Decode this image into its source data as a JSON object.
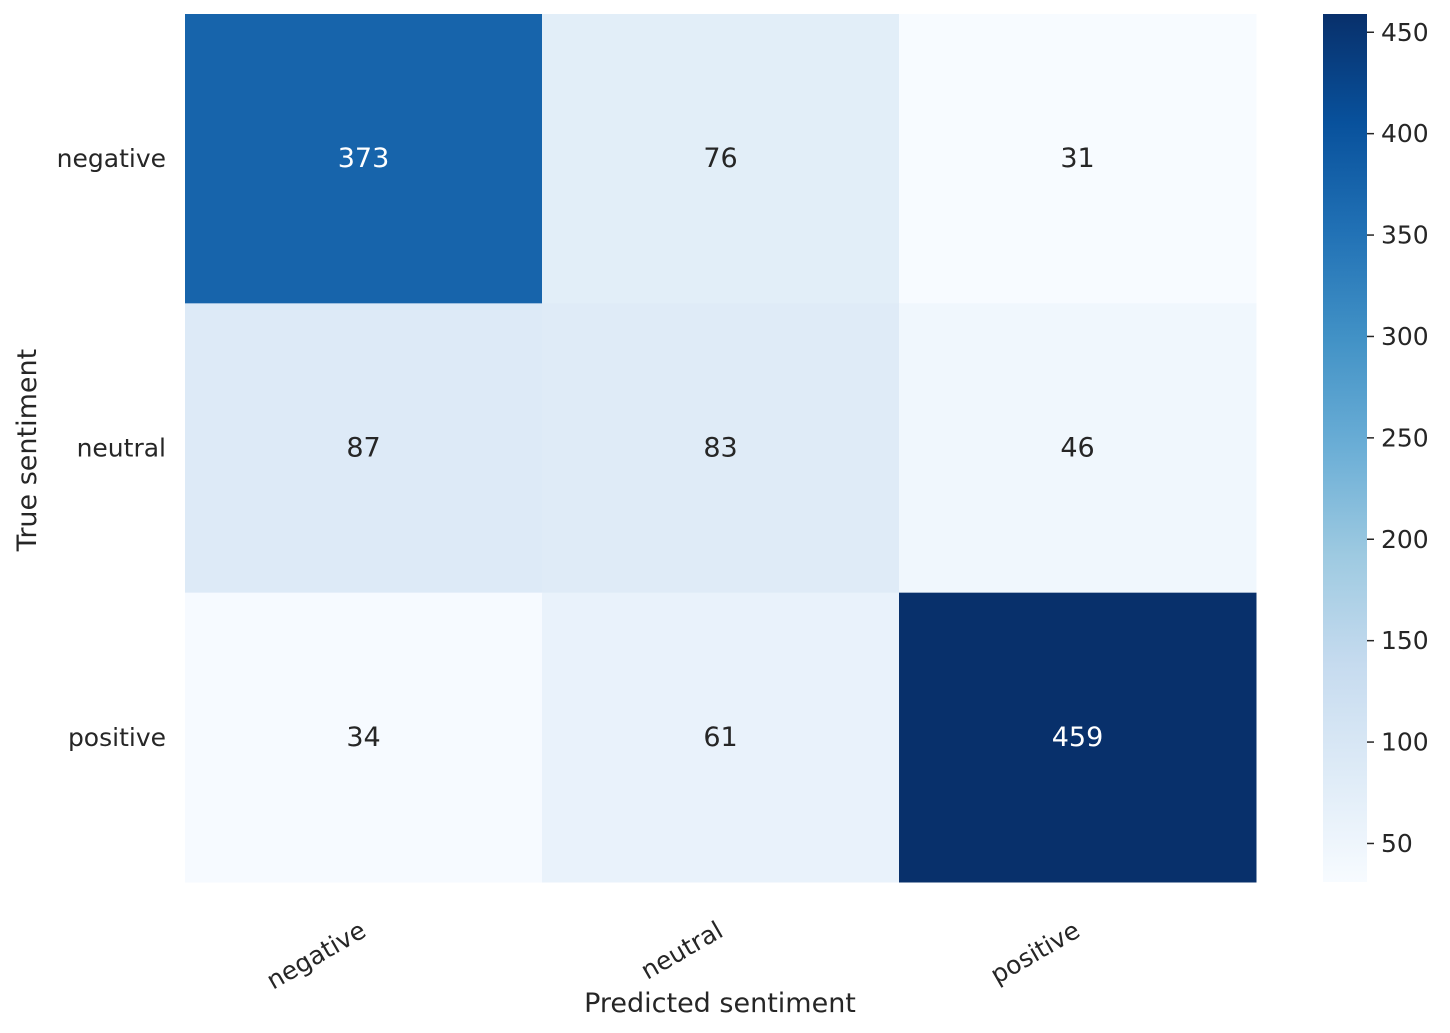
{
  "chart_data": {
    "type": "heatmap",
    "title": "",
    "xlabel": "Predicted sentiment",
    "ylabel": "True sentiment",
    "x_categories": [
      "negative",
      "neutral",
      "positive"
    ],
    "y_categories": [
      "negative",
      "neutral",
      "positive"
    ],
    "values": [
      [
        373,
        76,
        31
      ],
      [
        87,
        83,
        46
      ],
      [
        34,
        61,
        459
      ]
    ],
    "colormap": "Blues",
    "colorbar": {
      "min": 31,
      "max": 459,
      "ticks": [
        50,
        100,
        150,
        200,
        250,
        300,
        350,
        400,
        450
      ]
    },
    "annotations": true
  }
}
